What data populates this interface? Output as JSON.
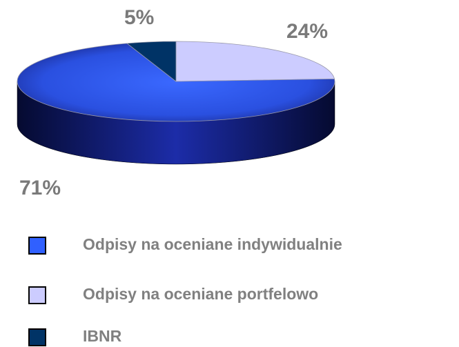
{
  "chart_data": {
    "type": "pie3d",
    "categories": [
      "Odpisy na oceniane indywidualnie",
      "Odpisy na oceniane portfelowo",
      "IBNR"
    ],
    "values": [
      71,
      24,
      5
    ],
    "value_labels": [
      "71%",
      "24%",
      "5%"
    ],
    "colors": [
      "#3060ff",
      "#ccccff",
      "#003366"
    ]
  }
}
